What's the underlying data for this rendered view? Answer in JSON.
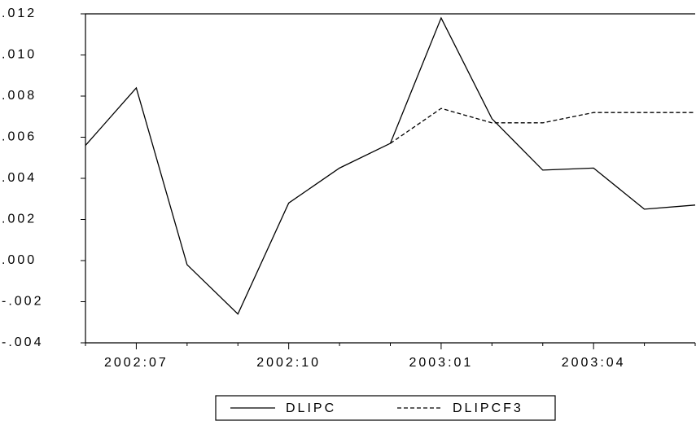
{
  "chart_data": {
    "type": "line",
    "categories": [
      null,
      "2002:07",
      null,
      null,
      "2002:10",
      null,
      null,
      "2003:01",
      null,
      null,
      "2003:04",
      null,
      null
    ],
    "series": [
      {
        "name": "DLIPC",
        "color": "#000000",
        "dash": "solid",
        "values": [
          0.0056,
          0.0084,
          -0.0002,
          -0.0026,
          0.0028,
          0.0045,
          0.0057,
          0.0118,
          0.0069,
          0.0044,
          0.0045,
          0.0025,
          0.0027
        ]
      },
      {
        "name": "DLIPCF3",
        "color": "#000000",
        "dash": "dashed",
        "values": [
          null,
          null,
          null,
          null,
          null,
          null,
          0.0057,
          0.0074,
          0.0067,
          0.0067,
          0.0072,
          0.0072,
          0.0072
        ]
      }
    ],
    "ylim": [
      -0.004,
      0.012
    ],
    "yticks": [
      {
        "value": -0.004,
        "label": "-.004"
      },
      {
        "value": -0.002,
        "label": "-.002"
      },
      {
        "value": 0,
        "label": ".000"
      },
      {
        "value": 0.002,
        "label": ".002"
      },
      {
        "value": 0.004,
        "label": ".004"
      },
      {
        "value": 0.006,
        "label": ".006"
      },
      {
        "value": 0.008,
        "label": ".008"
      },
      {
        "value": 0.01,
        "label": ".010"
      },
      {
        "value": 0.012,
        "label": ".012"
      }
    ],
    "grid": false,
    "legend": "bottom"
  }
}
